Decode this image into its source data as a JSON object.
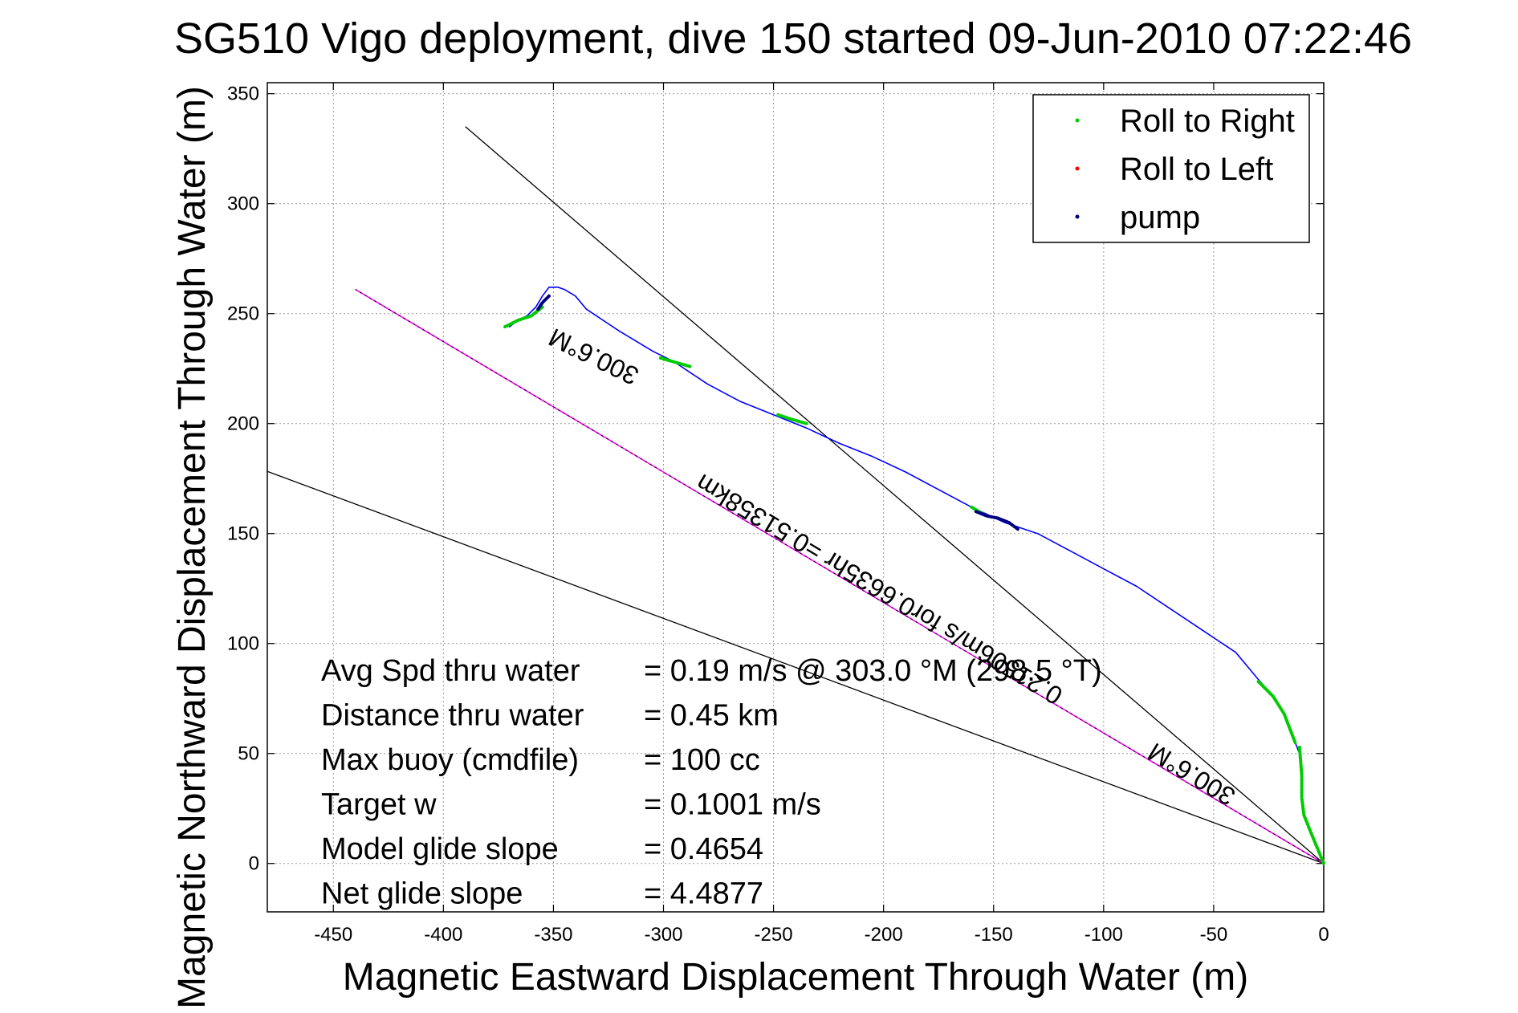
{
  "chart_data": {
    "type": "line",
    "title": "SG510 Vigo deployment, dive 150 started 09-Jun-2010 07:22:46",
    "xlabel": "Magnetic Eastward Displacement Through Water (m)",
    "ylabel": "Magnetic Northward Displacement Through Water (m)",
    "xlim": [
      -480,
      0
    ],
    "ylim": [
      -22,
      355
    ],
    "xticks": [
      -450,
      -400,
      -350,
      -300,
      -250,
      -200,
      -150,
      -100,
      -50,
      0
    ],
    "yticks": [
      0,
      50,
      100,
      150,
      200,
      250,
      300,
      350
    ],
    "grid": true,
    "legend": {
      "placement": "top-right",
      "entries": [
        {
          "label": "Roll to Right",
          "color": "#00cc00"
        },
        {
          "label": "Roll to Left",
          "color": "#ff0000"
        },
        {
          "label": "pump",
          "color": "#000080"
        }
      ]
    },
    "track": {
      "name": "dive track",
      "color": "#0000ff",
      "x": [
        0,
        -5,
        -9,
        -10,
        -10,
        -11,
        -13,
        -18,
        -23,
        -30,
        -40,
        -55,
        -70,
        -85,
        -100,
        -115,
        -130,
        -145,
        -160,
        -175,
        -190,
        -205,
        -220,
        -235,
        -250,
        -265,
        -280,
        -295,
        -305,
        -320,
        -335,
        -340,
        -345,
        -348,
        -352,
        -355,
        -358,
        -362,
        -366,
        -370
      ],
      "y": [
        0,
        12,
        22,
        30,
        40,
        50,
        55,
        68,
        76,
        84,
        96,
        106,
        116,
        126,
        134,
        142,
        150,
        155,
        162,
        170,
        178,
        185,
        191,
        198,
        204,
        210,
        218,
        228,
        233,
        242,
        252,
        258,
        261,
        262,
        262,
        258,
        253,
        249,
        247,
        244
      ]
    },
    "roll_right_segments": [
      {
        "x": [
          0,
          -5,
          -9,
          -10,
          -10,
          -11
        ],
        "y": [
          0,
          12,
          22,
          30,
          40,
          53
        ]
      },
      {
        "x": [
          -13,
          -18,
          -23,
          -30
        ],
        "y": [
          55,
          68,
          76,
          83
        ]
      },
      {
        "x": [
          -155,
          -160
        ],
        "y": [
          159,
          162
        ]
      },
      {
        "x": [
          -235,
          -242,
          -248
        ],
        "y": [
          200,
          202,
          204
        ]
      },
      {
        "x": [
          -288,
          -295,
          -302
        ],
        "y": [
          226,
          228,
          230
        ]
      },
      {
        "x": [
          -355,
          -360,
          -366,
          -372
        ],
        "y": [
          253,
          249,
          247,
          244
        ]
      }
    ],
    "pump_segments": [
      {
        "x": [
          -139,
          -143,
          -148,
          -153,
          -158
        ],
        "y": [
          152,
          155,
          157,
          158,
          160
        ]
      },
      {
        "x": [
          -352,
          -355,
          -357
        ],
        "y": [
          258,
          255,
          252
        ]
      }
    ],
    "reference_lines": [
      {
        "name": "heading-line-1",
        "color": "#000000",
        "x": [
          0,
          -490
        ],
        "y": [
          0,
          182
        ]
      },
      {
        "name": "heading-line-2",
        "color": "#000000",
        "x": [
          0,
          -390
        ],
        "y": [
          0,
          335
        ]
      },
      {
        "name": "target-line",
        "color": "#ff00ff",
        "x": [
          0,
          -440
        ],
        "y": [
          0,
          261
        ]
      }
    ],
    "annotations": [
      {
        "text": "300.6°M",
        "x": -330,
        "y": 234,
        "angle": 206
      },
      {
        "text": "0.21506m/s for0.6635hr =0.51358km",
        "x": -200,
        "y": 128,
        "angle": 211
      },
      {
        "text": "300.6°M",
        "x": -58,
        "y": 44,
        "angle": 211
      }
    ],
    "stats": [
      {
        "label": "Avg Spd thru water",
        "value": "=  0.19 m/s @ 303.0 °M (298.5 °T)"
      },
      {
        "label": "Distance thru water",
        "value": "=  0.45 km"
      },
      {
        "label": "Max buoy (cmdfile)",
        "value": "= 100 cc"
      },
      {
        "label": "Target w",
        "value": "= 0.1001 m/s"
      },
      {
        "label": "Model glide slope",
        "value": "= 0.4654"
      },
      {
        "label": "Net glide slope",
        "value": "= 4.4877"
      }
    ]
  }
}
